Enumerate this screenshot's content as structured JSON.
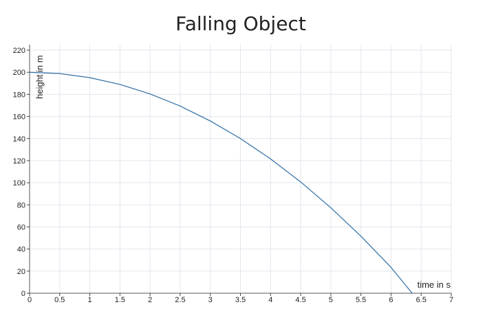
{
  "chart_data": {
    "type": "line",
    "title": "Falling Object",
    "xlabel": "time in s",
    "ylabel": "height in m",
    "xlim": [
      0,
      7
    ],
    "ylim": [
      0,
      225
    ],
    "x_ticks": [
      0,
      0.5,
      1,
      1.5,
      2,
      2.5,
      3,
      3.5,
      4,
      4.5,
      5,
      5.5,
      6,
      6.5,
      7
    ],
    "y_ticks": [
      0,
      20,
      40,
      60,
      80,
      100,
      120,
      140,
      160,
      180,
      200,
      220
    ],
    "grid": true,
    "line_color": "#2e6da4",
    "series": [
      {
        "x": [
          0,
          0.5,
          1,
          1.5,
          2,
          2.5,
          3,
          3.5,
          4,
          4.5,
          5,
          5.5,
          6,
          6.35
        ],
        "y": [
          200,
          198.8,
          195.1,
          189,
          180.4,
          169.4,
          155.9,
          140,
          121.6,
          100.7,
          77.4,
          51.6,
          23.4,
          0
        ]
      }
    ]
  }
}
